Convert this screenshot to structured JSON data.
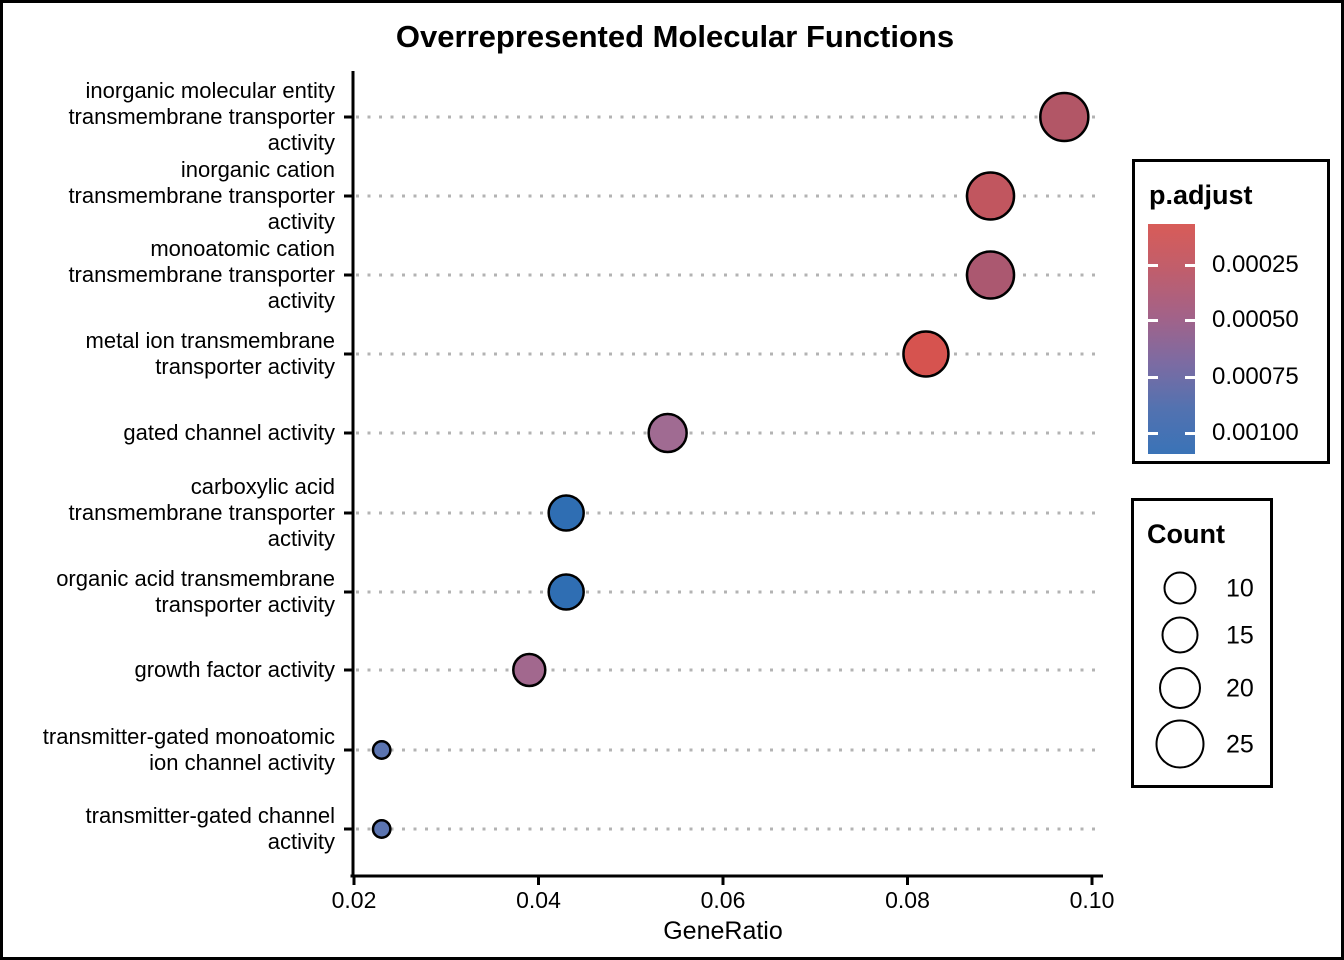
{
  "figure": {
    "title": "Overrepresented Molecular Functions"
  },
  "chart_data": {
    "type": "scatter",
    "subtype": "enrichment-dotplot",
    "title": "Overrepresented Molecular Functions",
    "xlabel": "GeneRatio",
    "ylabel": "",
    "xlim": [
      0.0197,
      0.1012
    ],
    "x_ticks": [
      0.02,
      0.04,
      0.06,
      0.08,
      0.1
    ],
    "x_tick_labels": [
      "0.02",
      "0.04",
      "0.06",
      "0.08",
      "0.10"
    ],
    "grid": "horizontal dotted gray lines per category",
    "legend_position": "right",
    "points": [
      {
        "label": "inorganic molecular entity transmembrane transporter activity",
        "label_lines": [
          "inorganic molecular entity",
          "transmembrane transporter",
          "activity"
        ],
        "gene_ratio": 0.097,
        "count": 26,
        "p_adjust": 0.00028,
        "color": "#b25666",
        "radius_px": 24
      },
      {
        "label": "inorganic cation transmembrane transporter activity",
        "label_lines": [
          "inorganic cation",
          "transmembrane transporter",
          "activity"
        ],
        "gene_ratio": 0.089,
        "count": 24,
        "p_adjust": 0.00022,
        "color": "#c1565f",
        "radius_px": 23.5
      },
      {
        "label": "monoatomic cation transmembrane transporter activity",
        "label_lines": [
          "monoatomic cation",
          "transmembrane transporter",
          "activity"
        ],
        "gene_ratio": 0.089,
        "count": 24,
        "p_adjust": 0.00032,
        "color": "#ab5870",
        "radius_px": 23.5
      },
      {
        "label": "metal ion transmembrane transporter activity",
        "label_lines": [
          "metal ion transmembrane",
          "transporter activity"
        ],
        "gene_ratio": 0.082,
        "count": 22,
        "p_adjust": 0.00012,
        "color": "#d6534f",
        "radius_px": 22.5
      },
      {
        "label": "gated channel activity",
        "label_lines": [
          "gated channel activity"
        ],
        "gene_ratio": 0.054,
        "count": 15,
        "p_adjust": 0.0006,
        "color": "#a06b92",
        "radius_px": 19
      },
      {
        "label": "carboxylic acid transmembrane transporter activity",
        "label_lines": [
          "carboxylic acid",
          "transmembrane transporter",
          "activity"
        ],
        "gene_ratio": 0.043,
        "count": 12,
        "p_adjust": 0.00105,
        "color": "#2f6eb3",
        "radius_px": 17.5
      },
      {
        "label": "organic acid transmembrane transporter activity",
        "label_lines": [
          "organic acid transmembrane",
          "transporter activity"
        ],
        "gene_ratio": 0.043,
        "count": 12,
        "p_adjust": 0.00105,
        "color": "#2f6eb3",
        "radius_px": 17.5
      },
      {
        "label": "growth factor activity",
        "label_lines": [
          "growth factor activity"
        ],
        "gene_ratio": 0.039,
        "count": 11,
        "p_adjust": 0.00062,
        "color": "#a2688e",
        "radius_px": 16
      },
      {
        "label": "transmitter-gated monoatomic ion channel activity",
        "label_lines": [
          "transmitter-gated monoatomic",
          "ion channel activity"
        ],
        "gene_ratio": 0.023,
        "count": 6,
        "p_adjust": 0.0009,
        "color": "#5b74b0",
        "radius_px": 8.7
      },
      {
        "label": "transmitter-gated channel activity",
        "label_lines": [
          "transmitter-gated channel",
          "activity"
        ],
        "gene_ratio": 0.023,
        "count": 6,
        "p_adjust": 0.0009,
        "color": "#5b74b0",
        "radius_px": 8.7
      }
    ],
    "color_legend": {
      "title": "p.adjust",
      "tick_labels": [
        "0.00025",
        "0.00050",
        "0.00075",
        "0.00100"
      ],
      "tick_values": [
        0.00025,
        0.0005,
        0.00075,
        0.001
      ],
      "gradient_stops": [
        "#d85c58",
        "#c05e6c",
        "#a36288",
        "#7d6ba2",
        "#5372b0",
        "#3a73b7"
      ],
      "high_color": "#d85c58",
      "low_color": "#3a73b7"
    },
    "size_legend": {
      "title": "Count",
      "entries": [
        {
          "label": "10",
          "value": 10,
          "radius_px": 16.5
        },
        {
          "label": "15",
          "value": 15,
          "radius_px": 18.5
        },
        {
          "label": "20",
          "value": 20,
          "radius_px": 21
        },
        {
          "label": "25",
          "value": 25,
          "radius_px": 24.5
        }
      ]
    },
    "style": {
      "point_stroke": "#000000",
      "grid_color": "#b3b3b3",
      "axis_color": "#000000",
      "background": "#ffffff"
    }
  }
}
